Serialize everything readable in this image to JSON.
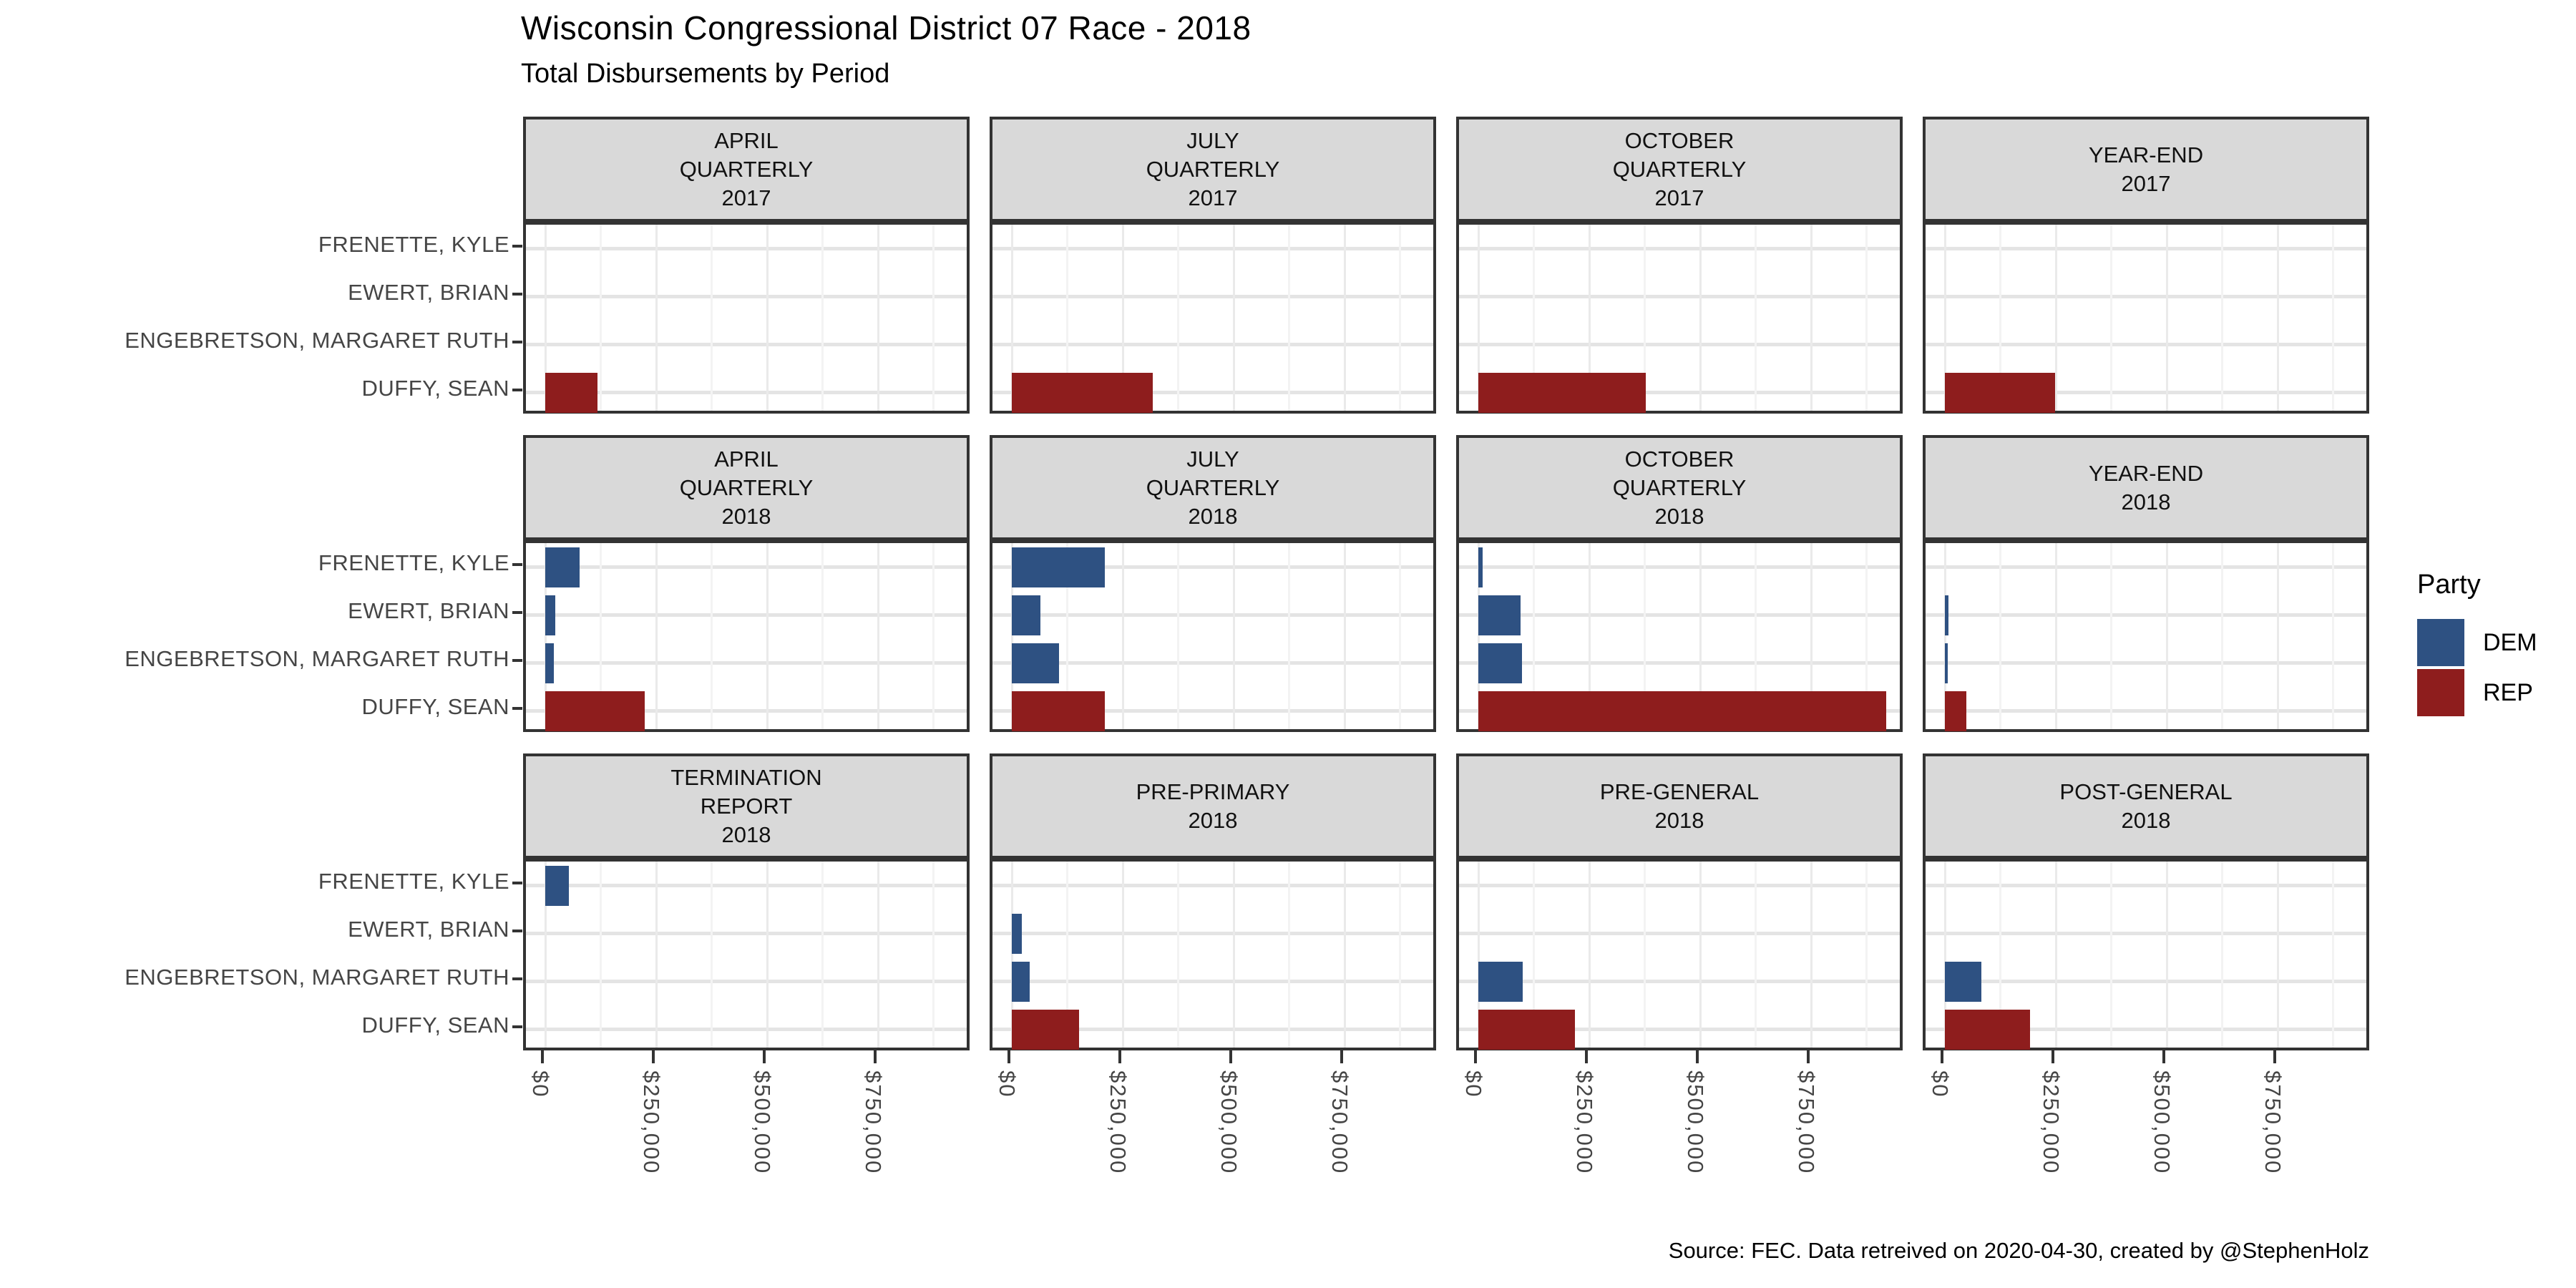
{
  "header": {
    "title": "Wisconsin Congressional District 07 Race - 2018",
    "subtitle": "Total Disbursements by Period"
  },
  "caption": "Source: FEC. Data retreived on 2020-04-30, created by @StephenHolz",
  "chart_data": {
    "type": "bar",
    "orientation": "horizontal",
    "facet_grid": {
      "rows": 3,
      "cols": 4
    },
    "categories": [
      "FRENETTE, KYLE",
      "EWERT, BRIAN",
      "ENGEBRETSON, MARGARET RUTH",
      "DUFFY, SEAN"
    ],
    "category_party": [
      "DEM",
      "DEM",
      "DEM",
      "REP"
    ],
    "party_colors": {
      "DEM": "#2e5182",
      "REP": "#8e1d1d"
    },
    "x_ticks": [
      {
        "label": "$0",
        "value": 0
      },
      {
        "label": "$250,000",
        "value": 250000
      },
      {
        "label": "$500,000",
        "value": 500000
      },
      {
        "label": "$750,000",
        "value": 750000
      }
    ],
    "x_minor_step": 125000,
    "x_major_step": 250000,
    "xlim": [
      0,
      980000
    ],
    "grid": "on",
    "legend": {
      "title": "Party",
      "position": "right",
      "entries": [
        {
          "label": "DEM",
          "color": "#2e5182"
        },
        {
          "label": "REP",
          "color": "#8e1d1d"
        }
      ]
    },
    "facets": [
      {
        "label_lines": [
          "APRIL",
          "QUARTERLY",
          "2017"
        ],
        "values": [
          0,
          0,
          0,
          118000
        ]
      },
      {
        "label_lines": [
          "JULY",
          "QUARTERLY",
          "2017"
        ],
        "values": [
          0,
          0,
          0,
          317000
        ]
      },
      {
        "label_lines": [
          "OCTOBER",
          "QUARTERLY",
          "2017"
        ],
        "values": [
          0,
          0,
          0,
          377000
        ]
      },
      {
        "label_lines": [
          "YEAR-END",
          "2017"
        ],
        "values": [
          0,
          0,
          0,
          248000
        ]
      },
      {
        "label_lines": [
          "APRIL",
          "QUARTERLY",
          "2018"
        ],
        "values": [
          78000,
          23000,
          20000,
          224000
        ]
      },
      {
        "label_lines": [
          "JULY",
          "QUARTERLY",
          "2018"
        ],
        "values": [
          210000,
          64000,
          106000,
          210000
        ]
      },
      {
        "label_lines": [
          "OCTOBER",
          "QUARTERLY",
          "2018"
        ],
        "values": [
          10000,
          95000,
          99000,
          920000
        ]
      },
      {
        "label_lines": [
          "YEAR-END",
          "2018"
        ],
        "values": [
          0,
          8000,
          6000,
          49000
        ]
      },
      {
        "label_lines": [
          "TERMINATION",
          "REPORT",
          "2018"
        ],
        "values": [
          54000,
          0,
          0,
          0
        ]
      },
      {
        "label_lines": [
          "PRE-PRIMARY",
          "2018"
        ],
        "values": [
          0,
          22000,
          40000,
          152000
        ]
      },
      {
        "label_lines": [
          "PRE-GENERAL",
          "2018"
        ],
        "values": [
          0,
          0,
          100000,
          218000
        ]
      },
      {
        "label_lines": [
          "POST-GENERAL",
          "2018"
        ],
        "values": [
          0,
          0,
          83000,
          192000
        ]
      }
    ],
    "style": {
      "strip_bg": "#d9d9d9",
      "panel_border": "#333333",
      "axis_text": "#454545",
      "grid_major": "#e4e4e4",
      "grid_minor": "#f3f3f3"
    }
  }
}
